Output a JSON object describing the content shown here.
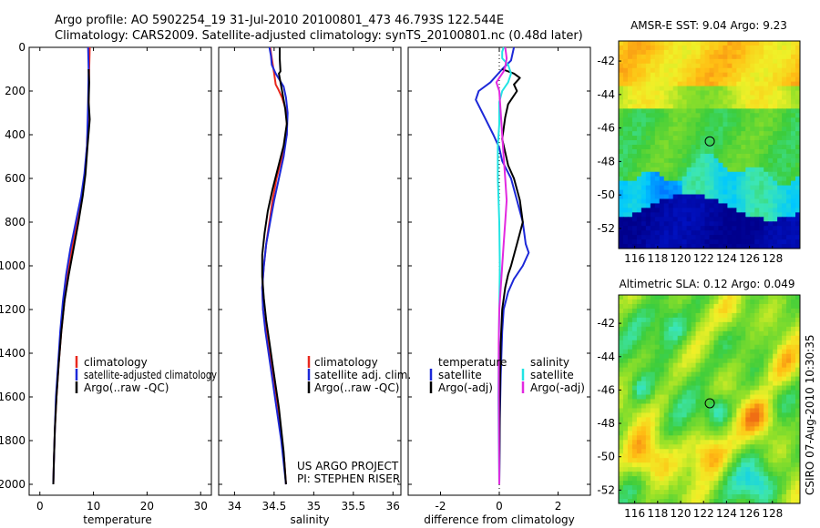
{
  "title": {
    "line1": "Argo profile: AO 5902254_19 31-Jul-2010 20100801_473 46.793S 122.544E",
    "line2": "Climatology: CARS2009. Satellite-adjusted climatology: synTS_20100801.nc (0.48d later)"
  },
  "side_note": "CSIRO 07-Aug-2010 10:30:35",
  "credit": {
    "line1": "US ARGO PROJECT",
    "line2": "PI: STEPHEN RISER"
  },
  "colors": {
    "climatology": "#e8281e",
    "satellite": "#1c28d8",
    "argo": "#000000",
    "sal_satellite": "#22e4e4",
    "sal_argo": "#e22ae0"
  },
  "chart_data": [
    {
      "id": "temperature",
      "type": "line",
      "xlabel": "temperature",
      "ylabel": "",
      "xlim": [
        -2,
        32
      ],
      "ylim": [
        2050,
        0
      ],
      "xticks": [
        0,
        10,
        20,
        30
      ],
      "yticks": [
        0,
        200,
        400,
        600,
        800,
        1000,
        1200,
        1400,
        1600,
        1800,
        2000
      ],
      "legend": [
        "climatology",
        "satellite-adjusted climatology",
        "Argo(..raw -QC)"
      ],
      "series": [
        {
          "name": "climatology",
          "color_key": "climatology",
          "points": [
            [
              9.3,
              0
            ],
            [
              9.2,
              100
            ],
            [
              9.1,
              250
            ],
            [
              8.8,
              450
            ],
            [
              8.4,
              580
            ],
            [
              7.9,
              680
            ],
            [
              7.0,
              800
            ],
            [
              6.0,
              920
            ],
            [
              5.2,
              1040
            ],
            [
              4.6,
              1160
            ],
            [
              4.0,
              1300
            ],
            [
              3.5,
              1450
            ],
            [
              3.1,
              1600
            ],
            [
              2.8,
              1750
            ],
            [
              2.6,
              1900
            ],
            [
              2.5,
              2000
            ]
          ]
        },
        {
          "name": "satellite-adjusted climatology",
          "color_key": "satellite",
          "points": [
            [
              9.0,
              0
            ],
            [
              9.1,
              100
            ],
            [
              9.0,
              250
            ],
            [
              8.8,
              450
            ],
            [
              8.3,
              580
            ],
            [
              7.7,
              680
            ],
            [
              6.7,
              800
            ],
            [
              5.7,
              920
            ],
            [
              4.9,
              1040
            ],
            [
              4.3,
              1160
            ],
            [
              3.8,
              1300
            ],
            [
              3.4,
              1450
            ],
            [
              3.0,
              1600
            ],
            [
              2.8,
              1750
            ],
            [
              2.6,
              1900
            ],
            [
              2.5,
              2000
            ]
          ]
        },
        {
          "name": "Argo(..raw -QC)",
          "color_key": "argo",
          "points": [
            [
              9.1,
              100
            ],
            [
              9.2,
              160
            ],
            [
              9.1,
              250
            ],
            [
              9.3,
              330
            ],
            [
              8.9,
              450
            ],
            [
              8.5,
              580
            ],
            [
              8.0,
              680
            ],
            [
              7.2,
              800
            ],
            [
              6.3,
              920
            ],
            [
              5.4,
              1040
            ],
            [
              4.6,
              1160
            ],
            [
              4.0,
              1300
            ],
            [
              3.5,
              1450
            ],
            [
              3.1,
              1600
            ],
            [
              2.8,
              1750
            ],
            [
              2.6,
              1900
            ],
            [
              2.5,
              2000
            ]
          ]
        }
      ]
    },
    {
      "id": "salinity",
      "type": "line",
      "xlabel": "salinity",
      "ylabel": "",
      "xlim": [
        33.8,
        36.1
      ],
      "ylim": [
        2050,
        0
      ],
      "xticks": [
        34,
        34.5,
        35,
        35.5,
        36
      ],
      "legend": [
        "climatology",
        "satellite adj. clim.",
        "Argo(..raw -QC)"
      ],
      "series": [
        {
          "name": "climatology",
          "color_key": "climatology",
          "points": [
            [
              34.45,
              0
            ],
            [
              34.47,
              50
            ],
            [
              34.5,
              120
            ],
            [
              34.52,
              170
            ],
            [
              34.55,
              190
            ],
            [
              34.6,
              230
            ],
            [
              34.66,
              300
            ],
            [
              34.66,
              400
            ],
            [
              34.6,
              500
            ],
            [
              34.53,
              600
            ],
            [
              34.48,
              700
            ],
            [
              34.44,
              800
            ],
            [
              34.4,
              900
            ],
            [
              34.37,
              1000
            ],
            [
              34.35,
              1100
            ],
            [
              34.36,
              1200
            ],
            [
              34.4,
              1300
            ],
            [
              34.44,
              1400
            ],
            [
              34.49,
              1500
            ],
            [
              34.53,
              1600
            ],
            [
              34.57,
              1700
            ],
            [
              34.6,
              1800
            ],
            [
              34.63,
              1900
            ],
            [
              34.65,
              2000
            ]
          ]
        },
        {
          "name": "satellite adj. clim.",
          "color_key": "satellite",
          "points": [
            [
              34.44,
              0
            ],
            [
              34.46,
              40
            ],
            [
              34.47,
              80
            ],
            [
              34.52,
              120
            ],
            [
              34.57,
              150
            ],
            [
              34.62,
              180
            ],
            [
              34.65,
              230
            ],
            [
              34.67,
              300
            ],
            [
              34.66,
              400
            ],
            [
              34.62,
              500
            ],
            [
              34.56,
              600
            ],
            [
              34.5,
              700
            ],
            [
              34.45,
              800
            ],
            [
              34.4,
              900
            ],
            [
              34.37,
              1000
            ],
            [
              34.35,
              1100
            ],
            [
              34.36,
              1200
            ],
            [
              34.39,
              1300
            ],
            [
              34.43,
              1400
            ],
            [
              34.47,
              1500
            ],
            [
              34.51,
              1600
            ],
            [
              34.55,
              1700
            ],
            [
              34.59,
              1800
            ],
            [
              34.62,
              1900
            ],
            [
              34.65,
              2000
            ]
          ]
        },
        {
          "name": "Argo(..raw -QC)",
          "color_key": "argo",
          "points": [
            [
              34.57,
              0
            ],
            [
              34.57,
              50
            ],
            [
              34.58,
              110
            ],
            [
              34.56,
              120
            ],
            [
              34.6,
              200
            ],
            [
              34.64,
              280
            ],
            [
              34.66,
              350
            ],
            [
              34.62,
              450
            ],
            [
              34.55,
              550
            ],
            [
              34.48,
              650
            ],
            [
              34.42,
              750
            ],
            [
              34.38,
              850
            ],
            [
              34.35,
              950
            ],
            [
              34.35,
              1050
            ],
            [
              34.37,
              1150
            ],
            [
              34.4,
              1250
            ],
            [
              34.44,
              1350
            ],
            [
              34.48,
              1450
            ],
            [
              34.52,
              1550
            ],
            [
              34.56,
              1650
            ],
            [
              34.59,
              1750
            ],
            [
              34.62,
              1850
            ],
            [
              34.64,
              1950
            ],
            [
              34.65,
              2000
            ]
          ]
        }
      ]
    },
    {
      "id": "difference",
      "type": "line",
      "xlabel": "difference from climatology",
      "ylabel": "",
      "xlim": [
        -3.1,
        3.1
      ],
      "ylim": [
        2050,
        0
      ],
      "xticks": [
        -2,
        0,
        2
      ],
      "zero_line": true,
      "legend_left": {
        "heading": "temperature",
        "items": [
          "satellite",
          "Argo(-adj)"
        ]
      },
      "legend_right": {
        "heading": "salinity",
        "items": [
          "satellite",
          "Argo(-adj)"
        ]
      },
      "series": [
        {
          "name": "temperature satellite",
          "color_key": "satellite",
          "points": [
            [
              0.5,
              0
            ],
            [
              0.4,
              60
            ],
            [
              0.1,
              100
            ],
            [
              -0.3,
              160
            ],
            [
              -0.7,
              200
            ],
            [
              -0.8,
              240
            ],
            [
              -0.5,
              320
            ],
            [
              -0.2,
              400
            ],
            [
              0.0,
              460
            ],
            [
              0.1,
              520
            ],
            [
              0.4,
              600
            ],
            [
              0.6,
              700
            ],
            [
              0.8,
              800
            ],
            [
              0.9,
              900
            ],
            [
              1.0,
              940
            ],
            [
              0.8,
              1000
            ],
            [
              0.5,
              1060
            ],
            [
              0.3,
              1120
            ],
            [
              0.15,
              1200
            ],
            [
              0.1,
              1300
            ],
            [
              0.05,
              1500
            ],
            [
              0.02,
              1700
            ],
            [
              0.0,
              2000
            ]
          ]
        },
        {
          "name": "temperature Argo(-adj)",
          "color_key": "argo",
          "points": [
            [
              0.1,
              100
            ],
            [
              0.5,
              120
            ],
            [
              0.7,
              140
            ],
            [
              0.5,
              170
            ],
            [
              0.6,
              200
            ],
            [
              0.3,
              260
            ],
            [
              0.2,
              320
            ],
            [
              0.1,
              420
            ],
            [
              0.2,
              480
            ],
            [
              0.3,
              540
            ],
            [
              0.5,
              600
            ],
            [
              0.7,
              700
            ],
            [
              0.8,
              800
            ],
            [
              0.6,
              900
            ],
            [
              0.4,
              1000
            ],
            [
              0.3,
              1040
            ],
            [
              0.2,
              1100
            ],
            [
              0.1,
              1200
            ],
            [
              0.05,
              1350
            ],
            [
              0.02,
              1600
            ],
            [
              0.0,
              2000
            ]
          ]
        },
        {
          "name": "salinity satellite",
          "color_key": "sal_satellite",
          "points": [
            [
              0.15,
              0
            ],
            [
              0.1,
              20
            ],
            [
              0.1,
              50
            ],
            [
              0.3,
              80
            ],
            [
              0.4,
              120
            ],
            [
              0.3,
              160
            ],
            [
              0.1,
              200
            ],
            [
              0.0,
              250
            ],
            [
              0.0,
              350
            ],
            [
              -0.05,
              450
            ],
            [
              -0.05,
              600
            ],
            [
              0.0,
              800
            ],
            [
              0.02,
              1000
            ],
            [
              0.0,
              1200
            ],
            [
              -0.02,
              1400
            ],
            [
              -0.03,
              1600
            ],
            [
              -0.02,
              1800
            ],
            [
              0.0,
              2000
            ]
          ]
        },
        {
          "name": "salinity Argo(-adj)",
          "color_key": "sal_argo",
          "points": [
            [
              0.2,
              0
            ],
            [
              0.25,
              50
            ],
            [
              0.2,
              90
            ],
            [
              0.15,
              110
            ],
            [
              0.05,
              130
            ],
            [
              -0.1,
              160
            ],
            [
              0.0,
              200
            ],
            [
              0.05,
              300
            ],
            [
              0.1,
              400
            ],
            [
              0.15,
              500
            ],
            [
              0.2,
              600
            ],
            [
              0.25,
              700
            ],
            [
              0.2,
              800
            ],
            [
              0.15,
              900
            ],
            [
              0.1,
              1000
            ],
            [
              0.05,
              1100
            ],
            [
              0.0,
              1200
            ],
            [
              -0.02,
              1350
            ],
            [
              -0.02,
              1600
            ],
            [
              0.0,
              2000
            ]
          ]
        }
      ]
    },
    {
      "id": "sst-map",
      "type": "heatmap",
      "title": "AMSR-E SST: 9.04  Argo: 9.23",
      "xlim": [
        114.6,
        130.4
      ],
      "ylim": [
        -53.2,
        -40.8
      ],
      "xticks": [
        116,
        118,
        120,
        122,
        124,
        126,
        128
      ],
      "yticks": [
        -42,
        -44,
        -46,
        -48,
        -50,
        -52
      ],
      "marker": [
        122.544,
        -46.793
      ]
    },
    {
      "id": "sla-map",
      "type": "heatmap",
      "title": "Altimetric SLA: 0.12  Argo: 0.049",
      "xlim": [
        114.6,
        130.4
      ],
      "ylim": [
        -52.8,
        -40.3
      ],
      "xticks": [
        116,
        118,
        120,
        122,
        124,
        126,
        128
      ],
      "yticks": [
        -42,
        -44,
        -46,
        -48,
        -50,
        -52
      ],
      "marker": [
        122.544,
        -46.793
      ]
    }
  ]
}
